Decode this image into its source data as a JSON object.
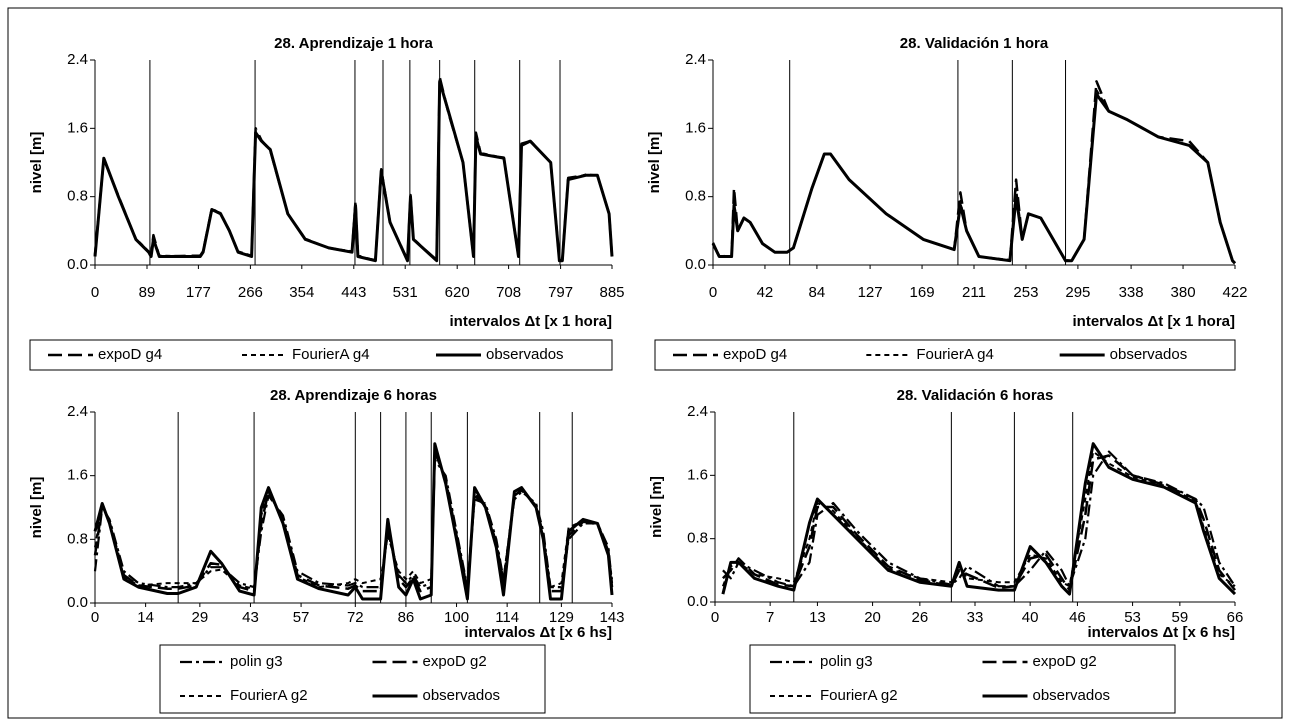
{
  "chart_data": [
    {
      "type": "line",
      "title": "28. Aprendizaje 1 hora",
      "x_label": "intervalos Δt [x 1 hora]",
      "y_label": "nivel [m]",
      "xlim": [
        0,
        885
      ],
      "ylim": [
        0,
        2.4
      ],
      "xticks": [
        0,
        89,
        177,
        266,
        354,
        443,
        531,
        620,
        708,
        797,
        885
      ],
      "yticks": [
        {
          "value": 0,
          "label": "0.0"
        },
        0.8,
        1.6,
        2.4
      ],
      "vlines": [
        94,
        274,
        445,
        493,
        539,
        590,
        650,
        727,
        796
      ],
      "x": [
        0,
        15,
        40,
        70,
        92,
        96,
        100,
        110,
        180,
        185,
        200,
        215,
        230,
        245,
        268,
        275,
        285,
        300,
        330,
        360,
        400,
        440,
        446,
        450,
        480,
        490,
        505,
        535,
        540,
        545,
        585,
        590,
        605,
        630,
        648,
        652,
        660,
        700,
        725,
        730,
        745,
        780,
        795,
        800,
        810,
        840,
        860,
        880,
        885
      ],
      "series": [
        {
          "name": "expoD g4",
          "color": "#000000",
          "line_style": "long-dash",
          "values": [
            0.12,
            1.24,
            0.81,
            0.3,
            0.15,
            0.11,
            0.35,
            0.1,
            0.11,
            0.16,
            0.66,
            0.6,
            0.4,
            0.15,
            0.1,
            1.6,
            1.46,
            1.34,
            0.6,
            0.3,
            0.2,
            0.15,
            0.75,
            0.11,
            0.05,
            1.12,
            0.5,
            0.06,
            0.82,
            0.3,
            0.06,
            2.2,
            1.78,
            1.2,
            0.1,
            1.55,
            1.31,
            1.25,
            0.1,
            1.42,
            1.45,
            1.2,
            0.06,
            0.05,
            1.02,
            1.05,
            1.05,
            0.6,
            0.1
          ]
        },
        {
          "name": "FourierA g4",
          "color": "#000000",
          "line_style": "short-dash",
          "values": [
            0.11,
            1.25,
            0.8,
            0.31,
            0.16,
            0.1,
            0.32,
            0.11,
            0.1,
            0.15,
            0.65,
            0.61,
            0.41,
            0.16,
            0.11,
            1.57,
            1.45,
            1.36,
            0.6,
            0.31,
            0.2,
            0.16,
            0.72,
            0.1,
            0.06,
            1.1,
            0.51,
            0.05,
            0.8,
            0.31,
            0.05,
            2.17,
            1.8,
            1.21,
            0.11,
            1.52,
            1.3,
            1.26,
            0.11,
            1.4,
            1.46,
            1.2,
            0.05,
            0.06,
            1.0,
            1.06,
            1.05,
            0.61,
            0.1
          ]
        },
        {
          "name": "observados",
          "color": "#000000",
          "line_style": "solid",
          "values": [
            0.1,
            1.25,
            0.8,
            0.3,
            0.15,
            0.1,
            0.3,
            0.1,
            0.1,
            0.15,
            0.65,
            0.6,
            0.4,
            0.15,
            0.1,
            1.55,
            1.45,
            1.35,
            0.6,
            0.3,
            0.2,
            0.15,
            0.7,
            0.1,
            0.05,
            1.1,
            0.5,
            0.05,
            0.8,
            0.3,
            0.05,
            2.15,
            1.8,
            1.2,
            0.1,
            1.5,
            1.3,
            1.25,
            0.1,
            1.4,
            1.45,
            1.2,
            0.05,
            0.05,
            1.0,
            1.05,
            1.05,
            0.6,
            0.1
          ]
        }
      ]
    },
    {
      "type": "line",
      "title": "28. Validación 1 hora",
      "x_label": "intervalos Δt [x 1 hora]",
      "y_label": "nivel [m]",
      "xlim": [
        0,
        422
      ],
      "ylim": [
        0,
        2.4
      ],
      "xticks": [
        0,
        42,
        84,
        127,
        169,
        211,
        253,
        295,
        338,
        380,
        422
      ],
      "yticks": [
        {
          "value": 0,
          "label": "0.0"
        },
        0.8,
        1.6,
        2.4
      ],
      "vlines": [
        62,
        198,
        242,
        285
      ],
      "x": [
        0,
        5,
        15,
        17,
        20,
        25,
        30,
        40,
        50,
        60,
        65,
        80,
        90,
        95,
        110,
        140,
        170,
        195,
        200,
        205,
        215,
        240,
        245,
        250,
        255,
        265,
        275,
        285,
        290,
        300,
        310,
        320,
        335,
        360,
        385,
        400,
        410,
        420,
        422
      ],
      "series": [
        {
          "name": "expoD g4",
          "color": "#000000",
          "line_style": "long-dash",
          "values": [
            0.26,
            0.1,
            0.1,
            0.9,
            0.4,
            0.55,
            0.5,
            0.25,
            0.15,
            0.15,
            0.2,
            0.9,
            1.3,
            1.3,
            1.0,
            0.6,
            0.3,
            0.18,
            0.85,
            0.4,
            0.1,
            0.05,
            1.0,
            0.3,
            0.6,
            0.55,
            0.3,
            0.05,
            0.05,
            0.3,
            2.15,
            1.8,
            1.7,
            1.5,
            1.45,
            1.2,
            0.5,
            0.05,
            0.02
          ]
        },
        {
          "name": "FourierA g4",
          "color": "#000000",
          "line_style": "short-dash",
          "values": [
            0.25,
            0.11,
            0.1,
            0.75,
            0.4,
            0.55,
            0.5,
            0.25,
            0.15,
            0.15,
            0.2,
            0.9,
            1.3,
            1.3,
            1.0,
            0.6,
            0.3,
            0.18,
            0.75,
            0.4,
            0.1,
            0.06,
            0.9,
            0.3,
            0.6,
            0.55,
            0.3,
            0.06,
            0.05,
            0.3,
            2.05,
            1.8,
            1.7,
            1.5,
            1.4,
            1.2,
            0.5,
            0.05,
            0.02
          ]
        },
        {
          "name": "observados",
          "color": "#000000",
          "line_style": "solid",
          "values": [
            0.25,
            0.1,
            0.1,
            0.7,
            0.4,
            0.55,
            0.5,
            0.25,
            0.15,
            0.15,
            0.2,
            0.9,
            1.3,
            1.3,
            1.0,
            0.6,
            0.3,
            0.18,
            0.7,
            0.4,
            0.1,
            0.05,
            0.8,
            0.3,
            0.6,
            0.55,
            0.3,
            0.05,
            0.05,
            0.3,
            2.0,
            1.8,
            1.7,
            1.5,
            1.4,
            1.2,
            0.5,
            0.05,
            0.02
          ]
        }
      ]
    },
    {
      "type": "line",
      "title": "28. Aprendizaje 6 horas",
      "x_label": "intervalos Δt [x 6 hs]",
      "y_label": "nivel [m]",
      "xlim": [
        0,
        143
      ],
      "ylim": [
        0,
        2.4
      ],
      "xticks": [
        0,
        14,
        29,
        43,
        57,
        72,
        86,
        100,
        114,
        129,
        143
      ],
      "yticks": [
        {
          "value": 0,
          "label": "0.0"
        },
        0.8,
        1.6,
        2.4
      ],
      "vlines": [
        23,
        44,
        72,
        79,
        86,
        93,
        103,
        123,
        132
      ],
      "x": [
        0,
        2,
        4,
        8,
        12,
        20,
        23,
        28,
        32,
        35,
        40,
        44,
        46,
        48,
        52,
        56,
        62,
        70,
        72,
        74,
        79,
        81,
        84,
        86,
        88,
        90,
        93,
        94,
        97,
        100,
        103,
        105,
        108,
        111,
        113,
        116,
        118,
        122,
        124,
        126,
        129,
        131,
        135,
        139,
        142,
        143
      ],
      "series": [
        {
          "name": "polin g3",
          "color": "#000000",
          "line_style": "dash-dot",
          "values": [
            0.4,
            1.2,
            1.05,
            0.4,
            0.25,
            0.2,
            0.2,
            0.25,
            0.45,
            0.45,
            0.25,
            0.2,
            0.9,
            1.35,
            1.1,
            0.4,
            0.25,
            0.22,
            0.25,
            0.2,
            0.2,
            0.9,
            0.35,
            0.25,
            0.35,
            0.2,
            0.25,
            1.8,
            1.6,
            0.9,
            0.2,
            1.3,
            1.25,
            0.8,
            0.3,
            1.3,
            1.4,
            1.25,
            0.9,
            0.2,
            0.2,
            0.8,
            1.0,
            1.0,
            0.7,
            0.25
          ]
        },
        {
          "name": "expoD g2",
          "color": "#000000",
          "line_style": "long-dash",
          "values": [
            0.6,
            1.22,
            1.02,
            0.35,
            0.22,
            0.18,
            0.18,
            0.22,
            0.5,
            0.48,
            0.2,
            0.15,
            1.0,
            1.4,
            1.05,
            0.35,
            0.22,
            0.18,
            0.22,
            0.15,
            0.15,
            0.95,
            0.3,
            0.2,
            0.32,
            0.15,
            0.2,
            1.9,
            1.55,
            0.85,
            0.15,
            1.35,
            1.22,
            0.75,
            0.25,
            1.35,
            1.42,
            1.22,
            0.85,
            0.15,
            0.15,
            0.85,
            1.02,
            1.0,
            0.65,
            0.2
          ]
        },
        {
          "name": "FourierA g2",
          "color": "#000000",
          "line_style": "short-dash",
          "values": [
            0.7,
            1.23,
            1.0,
            0.33,
            0.22,
            0.25,
            0.25,
            0.25,
            0.4,
            0.42,
            0.22,
            0.18,
            1.1,
            1.42,
            1.02,
            0.33,
            0.2,
            0.25,
            0.3,
            0.25,
            0.3,
            0.85,
            0.4,
            0.3,
            0.4,
            0.25,
            0.3,
            1.95,
            1.52,
            0.82,
            0.2,
            1.4,
            1.2,
            0.72,
            0.3,
            1.38,
            1.43,
            1.2,
            0.82,
            0.2,
            0.25,
            0.95,
            1.03,
            0.98,
            0.62,
            0.3
          ]
        },
        {
          "name": "observados",
          "color": "#000000",
          "line_style": "solid",
          "values": [
            0.9,
            1.25,
            1.0,
            0.3,
            0.2,
            0.12,
            0.12,
            0.2,
            0.65,
            0.5,
            0.15,
            0.1,
            1.2,
            1.45,
            1.0,
            0.3,
            0.18,
            0.1,
            0.2,
            0.05,
            0.05,
            1.05,
            0.2,
            0.1,
            0.3,
            0.05,
            0.1,
            2.0,
            1.5,
            0.8,
            0.05,
            1.45,
            1.2,
            0.7,
            0.1,
            1.4,
            1.45,
            1.2,
            0.8,
            0.05,
            0.05,
            0.9,
            1.05,
            1.0,
            0.6,
            0.1
          ]
        }
      ]
    },
    {
      "type": "line",
      "title": "28. Validación 6 horas",
      "x_label": "intervalos Δt [x 6 hs]",
      "y_label": "nivel [m]",
      "xlim": [
        0,
        66
      ],
      "ylim": [
        0,
        2.4
      ],
      "xticks": [
        0,
        7,
        13,
        20,
        26,
        33,
        40,
        46,
        53,
        59,
        66
      ],
      "yticks": [
        {
          "value": 0,
          "label": "0.0"
        },
        0.8,
        1.6,
        2.4
      ],
      "vlines": [
        10,
        30,
        38,
        45.4
      ],
      "x": [
        1,
        2,
        3,
        5,
        8,
        10,
        12,
        13,
        15,
        18,
        22,
        26,
        30,
        31,
        32,
        36,
        38,
        40,
        42,
        44,
        45,
        47,
        48,
        50,
        53,
        57,
        61,
        62,
        64,
        66
      ],
      "series": [
        {
          "name": "polin g3",
          "color": "#000000",
          "line_style": "dash-dot",
          "values": [
            0.4,
            0.3,
            0.5,
            0.4,
            0.25,
            0.2,
            0.5,
            1.1,
            1.25,
            0.9,
            0.5,
            0.3,
            0.22,
            0.3,
            0.45,
            0.2,
            0.2,
            0.4,
            0.65,
            0.4,
            0.2,
            0.8,
            1.6,
            1.9,
            1.6,
            1.5,
            1.3,
            1.2,
            0.5,
            0.2
          ]
        },
        {
          "name": "expoD g2",
          "color": "#000000",
          "line_style": "long-dash",
          "values": [
            0.3,
            0.4,
            0.55,
            0.35,
            0.22,
            0.2,
            0.7,
            1.2,
            1.2,
            0.85,
            0.45,
            0.28,
            0.2,
            0.4,
            0.35,
            0.18,
            0.2,
            0.55,
            0.6,
            0.3,
            0.15,
            1.1,
            1.8,
            1.85,
            1.6,
            1.48,
            1.3,
            1.05,
            0.4,
            0.15
          ]
        },
        {
          "name": "FourierA g2",
          "color": "#000000",
          "line_style": "short-dash",
          "values": [
            0.2,
            0.45,
            0.5,
            0.35,
            0.3,
            0.25,
            0.8,
            1.25,
            1.15,
            0.82,
            0.42,
            0.3,
            0.25,
            0.45,
            0.3,
            0.25,
            0.25,
            0.6,
            0.55,
            0.25,
            0.2,
            1.3,
            1.9,
            1.75,
            1.58,
            1.47,
            1.28,
            0.95,
            0.35,
            0.2
          ]
        },
        {
          "name": "observados",
          "color": "#000000",
          "line_style": "solid",
          "values": [
            0.1,
            0.5,
            0.5,
            0.3,
            0.2,
            0.15,
            1.0,
            1.3,
            1.1,
            0.8,
            0.4,
            0.25,
            0.2,
            0.5,
            0.2,
            0.15,
            0.15,
            0.7,
            0.5,
            0.2,
            0.1,
            1.5,
            2.0,
            1.7,
            1.55,
            1.45,
            1.25,
            0.9,
            0.3,
            0.1
          ]
        }
      ]
    }
  ]
}
